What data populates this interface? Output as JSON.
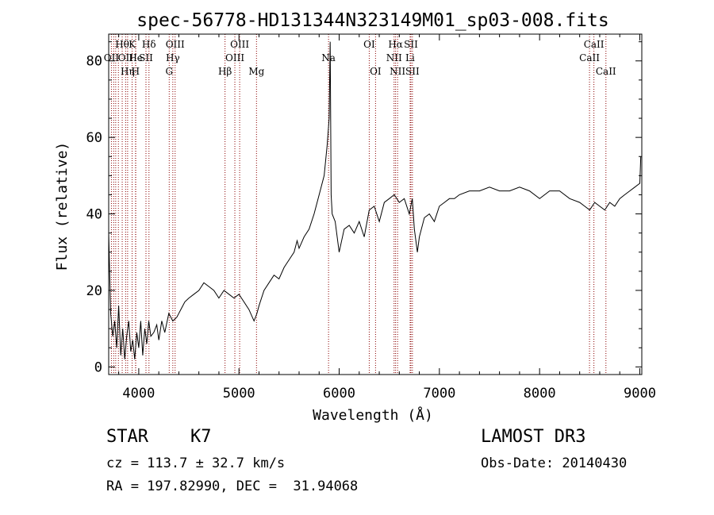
{
  "chart_data": {
    "type": "line",
    "title": "spec-56778-HD131344N323149M01_sp03-008.fits",
    "xlabel": "Wavelength (Å)",
    "ylabel": "Flux (relative)",
    "xlim": [
      3700,
      9020
    ],
    "ylim": [
      -2,
      87
    ],
    "xticks": [
      4000,
      5000,
      6000,
      7000,
      8000,
      9000
    ],
    "yticks": [
      0,
      20,
      40,
      60,
      80
    ],
    "grid": false,
    "line_color": "#000000",
    "marker_color": "#8b0000",
    "series": [
      {
        "x": [
          3700,
          3720,
          3740,
          3760,
          3780,
          3800,
          3820,
          3840,
          3860,
          3880,
          3900,
          3920,
          3940,
          3960,
          3980,
          4000,
          4020,
          4040,
          4060,
          4080,
          4100,
          4120,
          4150,
          4180,
          4200,
          4230,
          4260,
          4300,
          4340,
          4380,
          4420,
          4460,
          4500,
          4550,
          4600,
          4650,
          4700,
          4750,
          4800,
          4850,
          4900,
          4950,
          5000,
          5050,
          5100,
          5150,
          5180,
          5200,
          5250,
          5300,
          5350,
          5400,
          5450,
          5500,
          5550,
          5580,
          5600,
          5650,
          5700,
          5750,
          5800,
          5850,
          5880,
          5900,
          5910,
          5920,
          5930,
          5960,
          6000,
          6050,
          6100,
          6150,
          6200,
          6250,
          6300,
          6350,
          6400,
          6450,
          6500,
          6550,
          6600,
          6650,
          6700,
          6730,
          6750,
          6780,
          6800,
          6850,
          6900,
          6950,
          7000,
          7050,
          7100,
          7150,
          7200,
          7300,
          7400,
          7500,
          7600,
          7700,
          7800,
          7900,
          8000,
          8100,
          8200,
          8300,
          8400,
          8450,
          8500,
          8550,
          8600,
          8650,
          8700,
          8750,
          8800,
          8850,
          8900,
          8950,
          9000,
          9010
        ],
        "y": [
          35,
          14,
          8,
          12,
          5,
          16,
          3,
          10,
          2,
          8,
          12,
          4,
          7,
          2,
          9,
          5,
          12,
          3,
          10,
          6,
          12,
          8,
          9,
          11,
          7,
          12,
          9,
          14,
          12,
          13,
          15,
          17,
          18,
          19,
          20,
          22,
          21,
          20,
          18,
          20,
          19,
          18,
          19,
          17,
          15,
          12,
          14,
          16,
          20,
          22,
          24,
          23,
          26,
          28,
          30,
          33,
          31,
          34,
          36,
          40,
          45,
          50,
          58,
          65,
          85,
          45,
          40,
          38,
          30,
          36,
          37,
          35,
          38,
          34,
          41,
          42,
          38,
          43,
          44,
          45,
          43,
          44,
          40,
          44,
          36,
          30,
          34,
          39,
          40,
          38,
          42,
          43,
          44,
          44,
          45,
          46,
          46,
          47,
          46,
          46,
          47,
          46,
          44,
          46,
          46,
          44,
          43,
          42,
          41,
          43,
          42,
          41,
          43,
          42,
          44,
          45,
          46,
          47,
          48,
          55
        ]
      }
    ],
    "lines": [
      {
        "x": 3727,
        "label": "OII",
        "row": 1
      },
      {
        "x": 3750,
        "label": "",
        "row": 0
      },
      {
        "x": 3770,
        "label": "",
        "row": 0
      },
      {
        "x": 3797,
        "label": "",
        "row": 0
      },
      {
        "x": 3835,
        "label": "Hθ",
        "row": 0
      },
      {
        "x": 3869,
        "label": "OII",
        "row": 1
      },
      {
        "x": 3889,
        "label": "Hη",
        "row": 2
      },
      {
        "x": 3934,
        "label": "K",
        "row": 0
      },
      {
        "x": 3970,
        "label": "He",
        "row": 1
      },
      {
        "x": 3968,
        "label": "H",
        "row": 2
      },
      {
        "x": 4072,
        "label": "SII",
        "row": 1
      },
      {
        "x": 4102,
        "label": "Hδ",
        "row": 0
      },
      {
        "x": 4304,
        "label": "G",
        "row": 2
      },
      {
        "x": 4340,
        "label": "Hγ",
        "row": 1
      },
      {
        "x": 4363,
        "label": "OIII",
        "row": 0
      },
      {
        "x": 4861,
        "label": "Hβ",
        "row": 2
      },
      {
        "x": 4959,
        "label": "OIII",
        "row": 1
      },
      {
        "x": 5007,
        "label": "OIII",
        "row": 0
      },
      {
        "x": 5175,
        "label": "Mg",
        "row": 2
      },
      {
        "x": 5894,
        "label": "Na",
        "row": 1
      },
      {
        "x": 6300,
        "label": "OI",
        "row": 0
      },
      {
        "x": 6363,
        "label": "OI",
        "row": 2
      },
      {
        "x": 6548,
        "label": "NII",
        "row": 1
      },
      {
        "x": 6563,
        "label": "Hα",
        "row": 0
      },
      {
        "x": 6583,
        "label": "NII",
        "row": 2
      },
      {
        "x": 6708,
        "label": "Li",
        "row": 1
      },
      {
        "x": 6716,
        "label": "SII",
        "row": 0
      },
      {
        "x": 6731,
        "label": "SII",
        "row": 2
      },
      {
        "x": 8498,
        "label": "CaII",
        "row": 1
      },
      {
        "x": 8542,
        "label": "CaII",
        "row": 0
      },
      {
        "x": 8662,
        "label": "CaII",
        "row": 2
      }
    ]
  },
  "info": {
    "object_type": "STAR",
    "subclass": "K7",
    "survey": "LAMOST DR3",
    "redshift": "cz = 113.7 ± 32.7 km/s",
    "obs_date": "Obs-Date: 20140430",
    "coords": "RA = 197.82990, DEC =  31.94068"
  }
}
